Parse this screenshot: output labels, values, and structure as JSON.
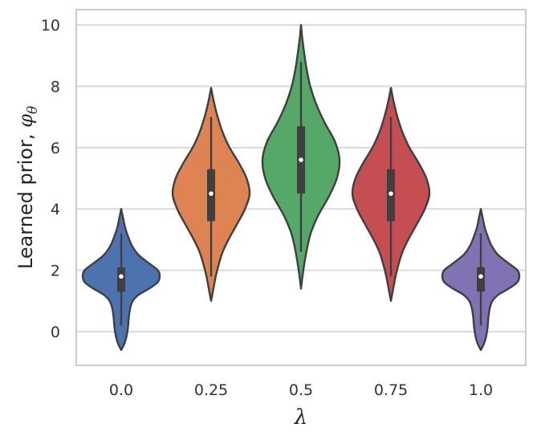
{
  "chart_data": {
    "type": "violin",
    "title": "",
    "xlabel": "λ",
    "ylabel_text": "Learned prior, ",
    "ylabel_symbol": "φ",
    "ylabel_subscript": "θ",
    "categories": [
      "0.0",
      "0.25",
      "0.5",
      "0.75",
      "1.0"
    ],
    "ylim": [
      -1.1,
      10.5
    ],
    "yticks": [
      0,
      2,
      4,
      6,
      8,
      10
    ],
    "grid": true,
    "series": [
      {
        "name": "0.0",
        "color": "#4c72b0",
        "range": [
          -0.6,
          4.0
        ],
        "q1": 1.3,
        "median": 1.8,
        "q3": 2.1,
        "whisker_low": 0.2,
        "whisker_high": 3.2,
        "profile": [
          [
            -0.6,
            0
          ],
          [
            -0.4,
            0.08
          ],
          [
            -0.2,
            0.13
          ],
          [
            0,
            0.16
          ],
          [
            0.2,
            0.18
          ],
          [
            0.5,
            0.2
          ],
          [
            0.8,
            0.24
          ],
          [
            1.0,
            0.3
          ],
          [
            1.2,
            0.45
          ],
          [
            1.4,
            0.72
          ],
          [
            1.6,
            0.94
          ],
          [
            1.8,
            1.0
          ],
          [
            2.0,
            0.95
          ],
          [
            2.2,
            0.75
          ],
          [
            2.5,
            0.45
          ],
          [
            2.8,
            0.28
          ],
          [
            3.1,
            0.18
          ],
          [
            3.4,
            0.1
          ],
          [
            3.7,
            0.05
          ],
          [
            4.0,
            0
          ]
        ]
      },
      {
        "name": "0.25",
        "color": "#dd8452",
        "range": [
          1.0,
          7.95
        ],
        "q1": 3.6,
        "median": 4.5,
        "q3": 5.3,
        "whisker_low": 1.8,
        "whisker_high": 7.0,
        "profile": [
          [
            1.0,
            0
          ],
          [
            1.4,
            0.06
          ],
          [
            1.8,
            0.12
          ],
          [
            2.2,
            0.2
          ],
          [
            2.6,
            0.3
          ],
          [
            3.0,
            0.45
          ],
          [
            3.5,
            0.67
          ],
          [
            4.0,
            0.88
          ],
          [
            4.5,
            1.0
          ],
          [
            5.0,
            0.92
          ],
          [
            5.5,
            0.72
          ],
          [
            6.0,
            0.48
          ],
          [
            6.5,
            0.3
          ],
          [
            7.0,
            0.17
          ],
          [
            7.5,
            0.07
          ],
          [
            7.95,
            0
          ]
        ]
      },
      {
        "name": "0.5",
        "color": "#55a868",
        "range": [
          1.4,
          10.0
        ],
        "q1": 4.5,
        "median": 5.6,
        "q3": 6.7,
        "whisker_low": 2.6,
        "whisker_high": 8.8,
        "profile": [
          [
            1.4,
            0
          ],
          [
            2.0,
            0.06
          ],
          [
            2.6,
            0.14
          ],
          [
            3.2,
            0.25
          ],
          [
            3.8,
            0.45
          ],
          [
            4.4,
            0.72
          ],
          [
            5.0,
            0.93
          ],
          [
            5.6,
            1.0
          ],
          [
            6.2,
            0.88
          ],
          [
            6.8,
            0.62
          ],
          [
            7.4,
            0.4
          ],
          [
            8.0,
            0.24
          ],
          [
            8.6,
            0.14
          ],
          [
            9.2,
            0.07
          ],
          [
            9.6,
            0.03
          ],
          [
            10.0,
            0
          ]
        ]
      },
      {
        "name": "0.75",
        "color": "#c44e52",
        "range": [
          1.0,
          7.95
        ],
        "q1": 3.6,
        "median": 4.5,
        "q3": 5.3,
        "whisker_low": 1.8,
        "whisker_high": 7.0,
        "profile": [
          [
            1.0,
            0
          ],
          [
            1.4,
            0.06
          ],
          [
            1.8,
            0.12
          ],
          [
            2.2,
            0.2
          ],
          [
            2.6,
            0.3
          ],
          [
            3.0,
            0.45
          ],
          [
            3.5,
            0.67
          ],
          [
            4.0,
            0.88
          ],
          [
            4.5,
            1.0
          ],
          [
            5.0,
            0.92
          ],
          [
            5.5,
            0.72
          ],
          [
            6.0,
            0.48
          ],
          [
            6.5,
            0.3
          ],
          [
            7.0,
            0.17
          ],
          [
            7.5,
            0.07
          ],
          [
            7.95,
            0
          ]
        ]
      },
      {
        "name": "1.0",
        "color": "#8172b3",
        "range": [
          -0.6,
          4.0
        ],
        "q1": 1.3,
        "median": 1.8,
        "q3": 2.1,
        "whisker_low": 0.2,
        "whisker_high": 3.2,
        "profile": [
          [
            -0.6,
            0
          ],
          [
            -0.4,
            0.08
          ],
          [
            -0.2,
            0.13
          ],
          [
            0,
            0.16
          ],
          [
            0.2,
            0.18
          ],
          [
            0.5,
            0.2
          ],
          [
            0.8,
            0.24
          ],
          [
            1.0,
            0.3
          ],
          [
            1.2,
            0.45
          ],
          [
            1.4,
            0.72
          ],
          [
            1.6,
            0.94
          ],
          [
            1.8,
            1.0
          ],
          [
            2.0,
            0.95
          ],
          [
            2.2,
            0.75
          ],
          [
            2.5,
            0.45
          ],
          [
            2.8,
            0.28
          ],
          [
            3.1,
            0.18
          ],
          [
            3.4,
            0.1
          ],
          [
            3.7,
            0.05
          ],
          [
            4.0,
            0
          ]
        ]
      }
    ]
  }
}
